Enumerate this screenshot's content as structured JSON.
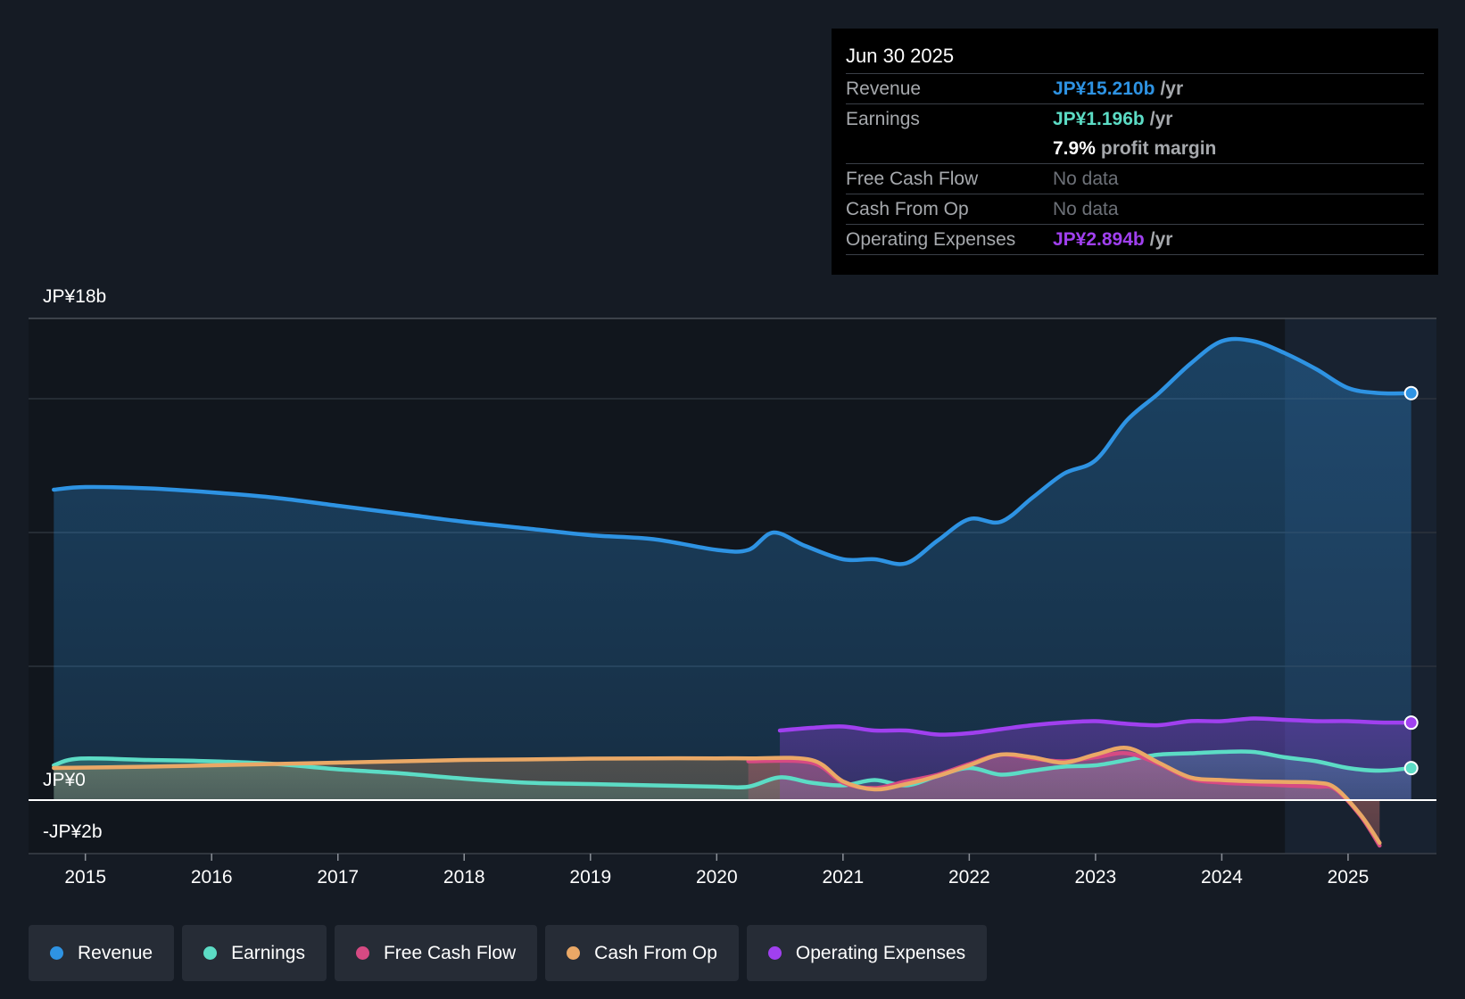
{
  "chart_data": {
    "type": "area",
    "y_axis": {
      "min": -2,
      "max": 18,
      "unit": "JP¥ billions",
      "labels": {
        "top": "JP¥18b",
        "zero": "JP¥0",
        "bottom": "-JP¥2b"
      }
    },
    "x_axis": {
      "min": 2014.55,
      "max": 2025.7,
      "ticks": [
        "2015",
        "2016",
        "2017",
        "2018",
        "2019",
        "2020",
        "2021",
        "2022",
        "2023",
        "2024",
        "2025"
      ]
    },
    "forecast_start": 2024.5,
    "series": [
      {
        "name": "Revenue",
        "color": "#2e93e3",
        "points": [
          [
            2014.75,
            11.6
          ],
          [
            2015.0,
            11.7
          ],
          [
            2015.5,
            11.65
          ],
          [
            2016.0,
            11.5
          ],
          [
            2016.5,
            11.3
          ],
          [
            2017.0,
            11.0
          ],
          [
            2017.5,
            10.7
          ],
          [
            2018.0,
            10.4
          ],
          [
            2018.5,
            10.15
          ],
          [
            2019.0,
            9.9
          ],
          [
            2019.5,
            9.75
          ],
          [
            2020.0,
            9.35
          ],
          [
            2020.25,
            9.35
          ],
          [
            2020.45,
            10.0
          ],
          [
            2020.7,
            9.5
          ],
          [
            2021.0,
            9.0
          ],
          [
            2021.25,
            9.0
          ],
          [
            2021.5,
            8.85
          ],
          [
            2021.75,
            9.7
          ],
          [
            2022.0,
            10.5
          ],
          [
            2022.25,
            10.4
          ],
          [
            2022.5,
            11.3
          ],
          [
            2022.75,
            12.2
          ],
          [
            2023.0,
            12.7
          ],
          [
            2023.25,
            14.2
          ],
          [
            2023.5,
            15.2
          ],
          [
            2023.75,
            16.3
          ],
          [
            2024.0,
            17.15
          ],
          [
            2024.25,
            17.15
          ],
          [
            2024.5,
            16.7
          ],
          [
            2024.75,
            16.1
          ],
          [
            2025.0,
            15.4
          ],
          [
            2025.25,
            15.21
          ],
          [
            2025.5,
            15.21
          ]
        ]
      },
      {
        "name": "Earnings",
        "color": "#5cdcc5",
        "points": [
          [
            2014.75,
            1.3
          ],
          [
            2014.95,
            1.55
          ],
          [
            2015.5,
            1.5
          ],
          [
            2016.0,
            1.45
          ],
          [
            2016.5,
            1.35
          ],
          [
            2017.0,
            1.15
          ],
          [
            2017.5,
            1.0
          ],
          [
            2018.0,
            0.8
          ],
          [
            2018.5,
            0.65
          ],
          [
            2019.0,
            0.6
          ],
          [
            2019.5,
            0.55
          ],
          [
            2020.0,
            0.5
          ],
          [
            2020.25,
            0.5
          ],
          [
            2020.5,
            0.85
          ],
          [
            2020.75,
            0.65
          ],
          [
            2021.0,
            0.55
          ],
          [
            2021.25,
            0.75
          ],
          [
            2021.5,
            0.55
          ],
          [
            2021.75,
            0.9
          ],
          [
            2022.0,
            1.2
          ],
          [
            2022.25,
            0.95
          ],
          [
            2022.5,
            1.1
          ],
          [
            2022.75,
            1.25
          ],
          [
            2023.0,
            1.3
          ],
          [
            2023.25,
            1.5
          ],
          [
            2023.5,
            1.7
          ],
          [
            2023.75,
            1.75
          ],
          [
            2024.0,
            1.8
          ],
          [
            2024.25,
            1.8
          ],
          [
            2024.5,
            1.6
          ],
          [
            2024.75,
            1.45
          ],
          [
            2025.0,
            1.2
          ],
          [
            2025.25,
            1.1
          ],
          [
            2025.5,
            1.196
          ]
        ]
      },
      {
        "name": "Free Cash Flow",
        "color": "#d64a83",
        "points": [
          [
            2020.25,
            1.45
          ],
          [
            2020.75,
            1.4
          ],
          [
            2021.0,
            0.65
          ],
          [
            2021.25,
            0.45
          ],
          [
            2021.5,
            0.7
          ],
          [
            2021.75,
            0.95
          ],
          [
            2022.0,
            1.35
          ],
          [
            2022.25,
            1.7
          ],
          [
            2022.5,
            1.55
          ],
          [
            2022.75,
            1.45
          ],
          [
            2023.0,
            1.6
          ],
          [
            2023.25,
            1.75
          ],
          [
            2023.5,
            1.35
          ],
          [
            2023.75,
            0.8
          ],
          [
            2024.0,
            0.65
          ],
          [
            2024.25,
            0.6
          ],
          [
            2024.5,
            0.55
          ],
          [
            2024.75,
            0.5
          ],
          [
            2024.9,
            0.4
          ],
          [
            2025.1,
            -0.6
          ],
          [
            2025.25,
            -1.7
          ]
        ]
      },
      {
        "name": "Cash From Op",
        "color": "#eaa866",
        "points": [
          [
            2014.75,
            1.2
          ],
          [
            2015.5,
            1.25
          ],
          [
            2016.0,
            1.3
          ],
          [
            2016.5,
            1.35
          ],
          [
            2017.0,
            1.4
          ],
          [
            2017.5,
            1.45
          ],
          [
            2018.0,
            1.5
          ],
          [
            2018.5,
            1.52
          ],
          [
            2019.0,
            1.55
          ],
          [
            2019.5,
            1.56
          ],
          [
            2020.0,
            1.56
          ],
          [
            2020.25,
            1.56
          ],
          [
            2020.75,
            1.5
          ],
          [
            2021.0,
            0.7
          ],
          [
            2021.25,
            0.4
          ],
          [
            2021.5,
            0.6
          ],
          [
            2021.75,
            0.9
          ],
          [
            2022.0,
            1.3
          ],
          [
            2022.25,
            1.7
          ],
          [
            2022.5,
            1.6
          ],
          [
            2022.75,
            1.4
          ],
          [
            2023.0,
            1.7
          ],
          [
            2023.25,
            1.95
          ],
          [
            2023.5,
            1.4
          ],
          [
            2023.75,
            0.85
          ],
          [
            2024.0,
            0.75
          ],
          [
            2024.25,
            0.7
          ],
          [
            2024.5,
            0.68
          ],
          [
            2024.75,
            0.65
          ],
          [
            2024.9,
            0.45
          ],
          [
            2025.1,
            -0.55
          ],
          [
            2025.25,
            -1.6
          ]
        ]
      },
      {
        "name": "Operating Expenses",
        "color": "#a040ef",
        "points": [
          [
            2020.5,
            2.6
          ],
          [
            2020.75,
            2.7
          ],
          [
            2021.0,
            2.75
          ],
          [
            2021.25,
            2.6
          ],
          [
            2021.5,
            2.6
          ],
          [
            2021.75,
            2.45
          ],
          [
            2022.0,
            2.5
          ],
          [
            2022.25,
            2.65
          ],
          [
            2022.5,
            2.8
          ],
          [
            2022.75,
            2.9
          ],
          [
            2023.0,
            2.95
          ],
          [
            2023.25,
            2.85
          ],
          [
            2023.5,
            2.8
          ],
          [
            2023.75,
            2.95
          ],
          [
            2024.0,
            2.95
          ],
          [
            2024.25,
            3.05
          ],
          [
            2024.5,
            3.0
          ],
          [
            2024.75,
            2.95
          ],
          [
            2025.0,
            2.95
          ],
          [
            2025.25,
            2.9
          ],
          [
            2025.5,
            2.894
          ]
        ]
      }
    ]
  },
  "tooltip": {
    "date": "Jun 30 2025",
    "revenue_label": "Revenue",
    "revenue_value": "JP¥15.210b",
    "revenue_unit": "/yr",
    "earnings_label": "Earnings",
    "earnings_value": "JP¥1.196b",
    "earnings_unit": "/yr",
    "margin_value": "7.9%",
    "margin_label": "profit margin",
    "fcf_label": "Free Cash Flow",
    "fcf_value": "No data",
    "cfo_label": "Cash From Op",
    "cfo_value": "No data",
    "opex_label": "Operating Expenses",
    "opex_value": "JP¥2.894b",
    "opex_unit": "/yr"
  },
  "legend": [
    {
      "label": "Revenue",
      "color": "#2e93e3"
    },
    {
      "label": "Earnings",
      "color": "#5cdcc5"
    },
    {
      "label": "Free Cash Flow",
      "color": "#d64a83"
    },
    {
      "label": "Cash From Op",
      "color": "#eaa866"
    },
    {
      "label": "Operating Expenses",
      "color": "#a040ef"
    }
  ]
}
